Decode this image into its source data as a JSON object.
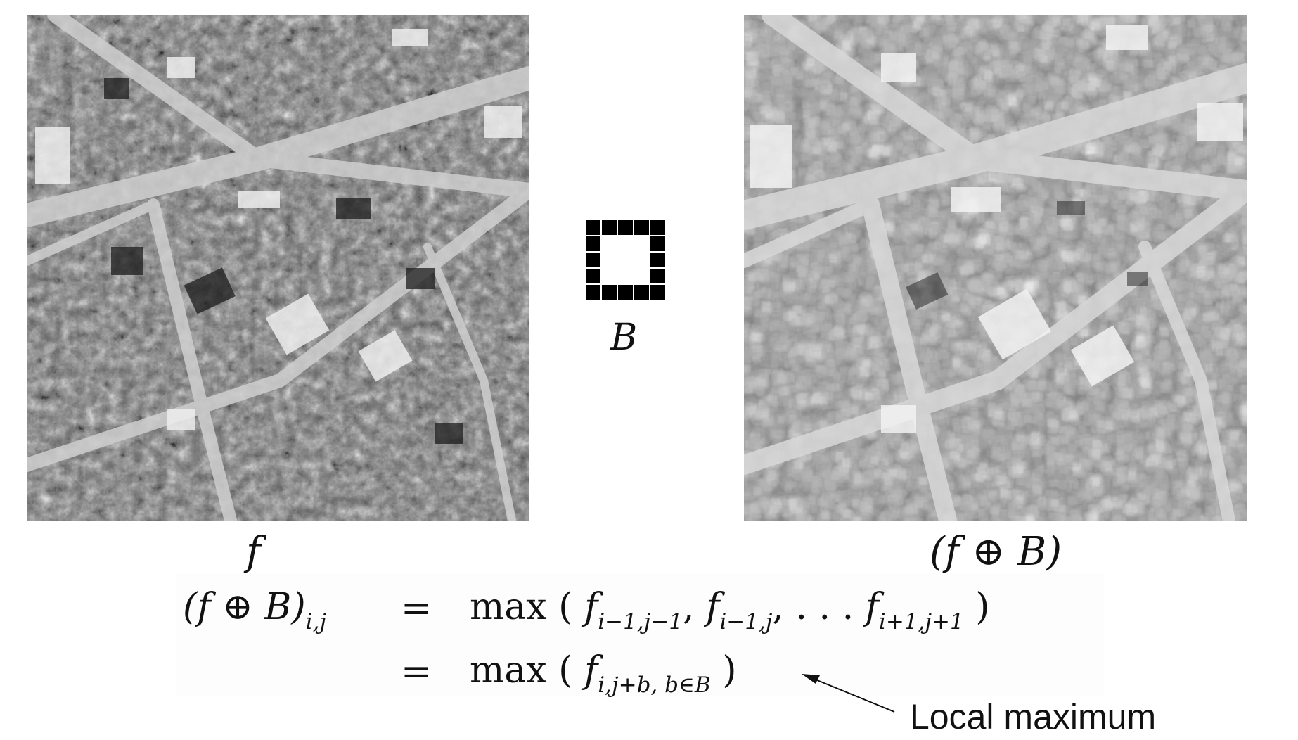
{
  "labels": {
    "input_image": "f",
    "structuring_element": "B",
    "dilated_image": "(f ⊕ B)",
    "annotation": "Local maximum"
  },
  "equations": {
    "line1_lhs": "(f ⊕ B)",
    "line1_lhs_sub": "i,j",
    "equals": "=",
    "line1_rhs_prefix": "max (",
    "line1_rhs_terms": "f",
    "line1_t1_sub": "i−1,j−1",
    "line1_t2_sub": "i−1,j",
    "line1_t3_sub": "i+1,j+1",
    "line1_sep": ",",
    "line1_dots": ", . . .",
    "close_paren": ")",
    "line2_rhs_prefix": "max (",
    "line2_term": "f",
    "line2_sub": "i,j+b, b∈B"
  },
  "structuring_element_grid": {
    "rows": 5,
    "cols": 5,
    "pattern": "hollow-square"
  }
}
